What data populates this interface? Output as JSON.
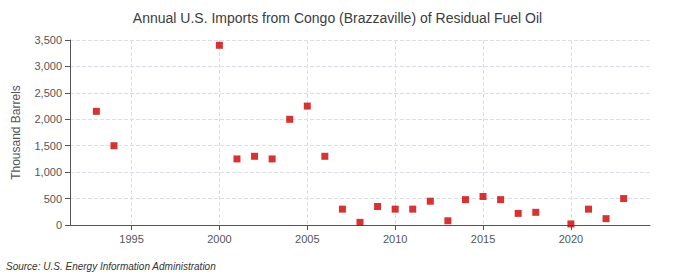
{
  "chart_data": {
    "type": "scatter",
    "title": "Annual U.S. Imports from Congo (Brazzaville) of Residual Fuel Oil",
    "ylabel": "Thousand Barrels",
    "annotations": [
      "Source: U.S. Energy Information Administration"
    ],
    "x": [
      1993,
      1994,
      2000,
      2001,
      2002,
      2003,
      2004,
      2005,
      2006,
      2007,
      2008,
      2009,
      2010,
      2011,
      2012,
      2013,
      2014,
      2015,
      2016,
      2017,
      2018,
      2020,
      2021,
      2022,
      2023
    ],
    "values": [
      2150,
      1500,
      3400,
      1250,
      1300,
      1250,
      2000,
      2250,
      1300,
      300,
      50,
      350,
      300,
      300,
      450,
      80,
      480,
      540,
      480,
      220,
      240,
      20,
      300,
      120,
      500
    ],
    "color": "#cc0000",
    "marker": "square",
    "xlim": [
      1991.5,
      2024.5
    ],
    "xticks": [
      1995,
      2000,
      2005,
      2010,
      2015,
      2020
    ],
    "ylim": [
      0,
      3500
    ],
    "yticks": [
      0,
      500,
      {
        "value": 1000,
        "label": "1,000"
      },
      {
        "value": 1500,
        "label": "1,500"
      },
      {
        "value": 2000,
        "label": "2,000"
      },
      {
        "value": 2500,
        "label": "2,500"
      },
      {
        "value": 3000,
        "label": "3,000"
      },
      {
        "value": 3500,
        "label": "3,500"
      }
    ],
    "grid": true
  }
}
